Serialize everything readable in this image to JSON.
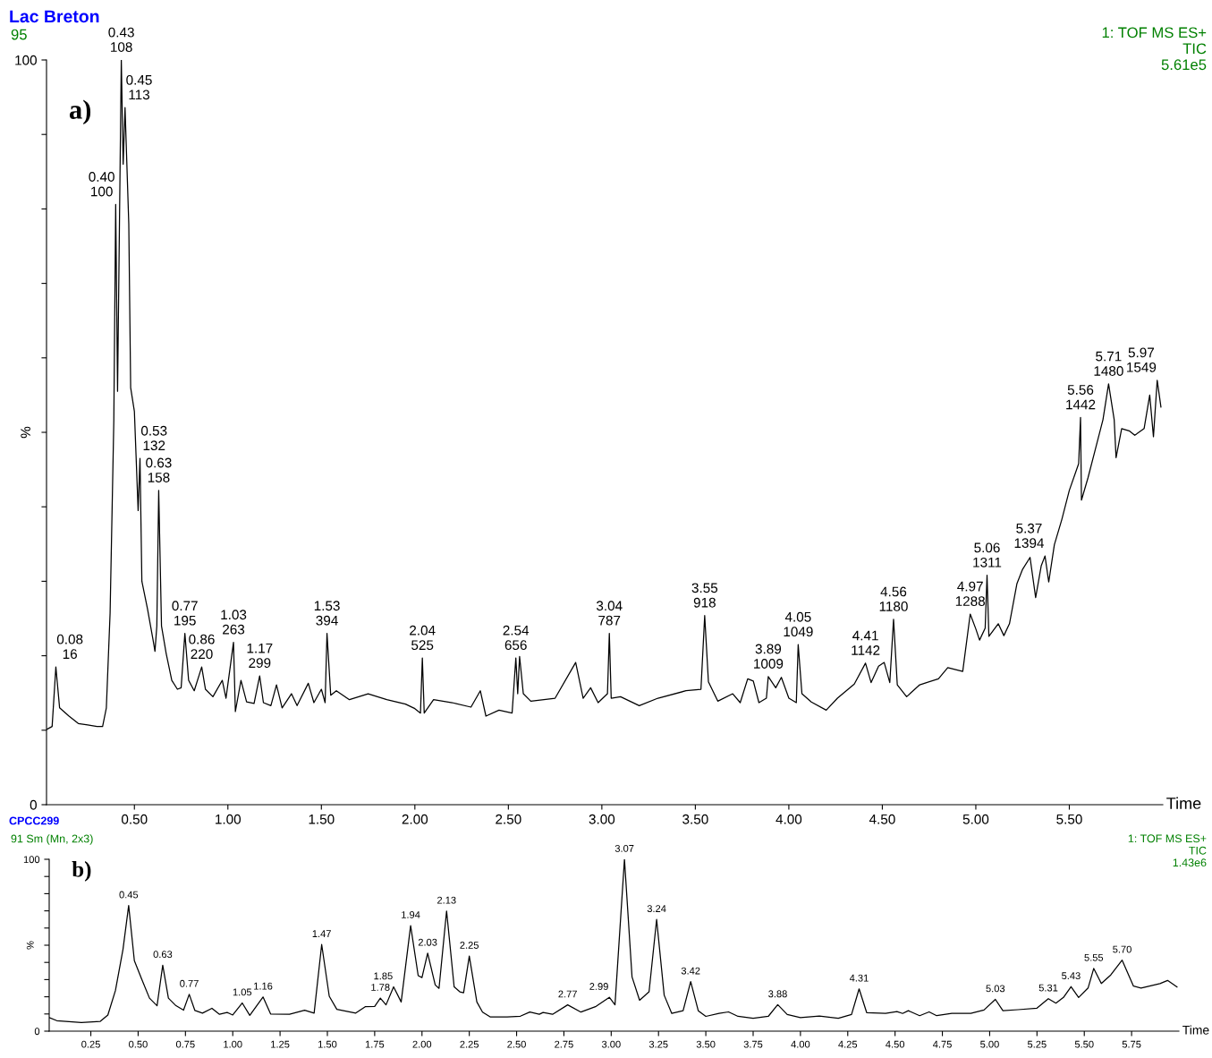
{
  "chart_data": [
    {
      "type": "line",
      "title": "Lac Breton",
      "subtitle": "95",
      "xlabel": "Time",
      "ylabel": "%",
      "x": [
        0.03,
        0.06,
        0.08,
        0.1,
        0.15,
        0.2,
        0.25,
        0.3,
        0.33,
        0.35,
        0.37,
        0.39,
        0.4,
        0.41,
        0.43,
        0.44,
        0.45,
        0.47,
        0.48,
        0.5,
        0.52,
        0.53,
        0.54,
        0.57,
        0.6,
        0.61,
        0.62,
        0.63,
        0.645,
        0.67,
        0.7,
        0.73,
        0.75,
        0.77,
        0.79,
        0.82,
        0.86,
        0.88,
        0.92,
        0.97,
        0.99,
        1.03,
        1.04,
        1.07,
        1.1,
        1.14,
        1.17,
        1.19,
        1.23,
        1.26,
        1.29,
        1.34,
        1.37,
        1.43,
        1.46,
        1.5,
        1.52,
        1.53,
        1.55,
        1.58,
        1.65,
        1.75,
        1.85,
        1.95,
        2.0,
        2.03,
        2.04,
        2.05,
        2.1,
        2.2,
        2.3,
        2.35,
        2.38,
        2.45,
        2.52,
        2.54,
        2.55,
        2.56,
        2.58,
        2.62,
        2.75,
        2.86,
        2.9,
        2.94,
        2.98,
        3.03,
        3.04,
        3.05,
        3.1,
        3.2,
        3.3,
        3.45,
        3.53,
        3.55,
        3.57,
        3.62,
        3.7,
        3.74,
        3.78,
        3.81,
        3.84,
        3.88,
        3.89,
        3.93,
        3.96,
        4.0,
        4.04,
        4.05,
        4.07,
        4.12,
        4.2,
        4.26,
        4.35,
        4.41,
        4.44,
        4.48,
        4.51,
        4.54,
        4.56,
        4.58,
        4.63,
        4.7,
        4.8,
        4.85,
        4.93,
        4.97,
        5.0,
        5.02,
        5.05,
        5.06,
        5.07,
        5.12,
        5.15,
        5.18,
        5.22,
        5.25,
        5.29,
        5.32,
        5.35,
        5.37,
        5.39,
        5.42,
        5.46,
        5.5,
        5.55,
        5.56,
        5.565,
        5.6,
        5.64,
        5.68,
        5.71,
        5.74,
        5.75,
        5.78,
        5.82,
        5.85,
        5.9,
        5.93,
        5.95,
        5.97,
        5.99
      ],
      "series": [
        {
          "color": "#000000",
          "values": [
            10.1,
            10.5,
            18.5,
            13,
            11.9,
            10.9,
            10.7,
            10.5,
            10.5,
            13,
            25.7,
            51.6,
            80.6,
            55.5,
            100,
            86,
            93.6,
            78,
            56,
            52.8,
            39.5,
            46.5,
            30,
            26.3,
            22.1,
            20.6,
            24,
            42.2,
            24,
            20.3,
            16.7,
            15.5,
            15.7,
            23,
            16.7,
            15.3,
            18.5,
            15.5,
            14.5,
            16.7,
            14.3,
            21.8,
            12.5,
            16.7,
            13.8,
            13.6,
            17.3,
            13.7,
            13.3,
            16.1,
            13,
            14.9,
            13.3,
            16.3,
            13.7,
            15.5,
            13.7,
            23,
            14.7,
            15.3,
            14.1,
            14.9,
            14.1,
            13.5,
            12.9,
            12.3,
            19.7,
            12.3,
            14.1,
            13.7,
            13.1,
            15.3,
            11.9,
            12.7,
            12.3,
            19.7,
            14.9,
            19.9,
            14.9,
            13.9,
            14.3,
            19.1,
            14.3,
            15.7,
            13.7,
            14.9,
            23,
            14.3,
            14.5,
            13.3,
            14.3,
            15.3,
            15.5,
            25.4,
            16.5,
            13.9,
            14.9,
            13.7,
            16.9,
            16.6,
            13.7,
            14.3,
            17.2,
            15.7,
            17.1,
            14.3,
            13.7,
            21.5,
            14.9,
            13.8,
            12.7,
            14.3,
            16.2,
            19,
            16.4,
            18.6,
            19.1,
            16.4,
            24.9,
            16.1,
            14.5,
            16.1,
            16.9,
            18.4,
            17.9,
            25.6,
            23.6,
            22.1,
            23.7,
            30.8,
            22.6,
            24.3,
            22.7,
            24.3,
            29.7,
            31.6,
            33.2,
            27.8,
            32.1,
            33.4,
            29.9,
            34.9,
            38.3,
            42.2,
            45.8,
            52,
            40.9,
            43.9,
            47.8,
            51.7,
            56.5,
            51.7,
            46.6,
            50.5,
            50.2,
            49.6,
            50.5,
            55,
            49.4,
            57,
            53.4
          ]
        }
      ],
      "xlim": [
        0.03,
        6.0
      ],
      "xticks": [
        {
          "value": 0.5,
          "label": "0.50"
        },
        {
          "value": 1.0,
          "label": "1.00"
        },
        {
          "value": 1.5,
          "label": "1.50"
        },
        {
          "value": 2.0,
          "label": "2.00"
        },
        {
          "value": 2.5,
          "label": "2.50"
        },
        {
          "value": 3.0,
          "label": "3.00"
        },
        {
          "value": 3.5,
          "label": "3.50"
        },
        {
          "value": 4.0,
          "label": "4.00"
        },
        {
          "value": 4.5,
          "label": "4.50"
        },
        {
          "value": 5.0,
          "label": "5.00"
        },
        {
          "value": 5.5,
          "label": "5.50"
        }
      ],
      "ylim": [
        0,
        100
      ],
      "yticks": [
        0,
        {
          "value": 10,
          "label": null
        },
        {
          "value": 20,
          "label": null
        },
        {
          "value": 30,
          "label": null
        },
        {
          "value": 40,
          "label": null
        },
        {
          "value": 50,
          "label": null
        },
        {
          "value": 60,
          "label": null
        },
        {
          "value": 70,
          "label": null
        },
        {
          "value": 80,
          "label": null
        },
        {
          "value": 90,
          "label": null
        },
        100
      ],
      "grid": false,
      "legend": false,
      "marker": "none",
      "line_style": "solid",
      "annotations": [
        "a)",
        "1: TOF MS ES+\nTIC\n5.61e5",
        {
          "text": "0.08\n16",
          "x": 0.08,
          "y": 18.5
        },
        {
          "text": "0.40\n100",
          "x": 0.4,
          "y": 80.6
        },
        {
          "text": "0.43\n108",
          "x": 0.43,
          "y": 100
        },
        {
          "text": "0.45\n113",
          "x": 0.45,
          "y": 93.6
        },
        {
          "text": "0.53\n132",
          "x": 0.53,
          "y": 46.5
        },
        {
          "text": "0.63\n158",
          "x": 0.63,
          "y": 42.2
        },
        {
          "text": "0.77\n195",
          "x": 0.77,
          "y": 23
        },
        {
          "text": "0.86\n220",
          "x": 0.86,
          "y": 18.5
        },
        {
          "text": "1.03\n263",
          "x": 1.03,
          "y": 21.8
        },
        {
          "text": "1.17\n299",
          "x": 1.17,
          "y": 17.3
        },
        {
          "text": "1.53\n394",
          "x": 1.53,
          "y": 23
        },
        {
          "text": "2.04\n525",
          "x": 2.04,
          "y": 19.7
        },
        {
          "text": "2.54\n656",
          "x": 2.54,
          "y": 19.7
        },
        {
          "text": "3.04\n787",
          "x": 3.04,
          "y": 23
        },
        {
          "text": "3.55\n918",
          "x": 3.55,
          "y": 25.4
        },
        {
          "text": "3.89\n1009",
          "x": 3.89,
          "y": 17.2
        },
        {
          "text": "4.05\n1049",
          "x": 4.05,
          "y": 21.5
        },
        {
          "text": "4.41\n1142",
          "x": 4.41,
          "y": 19
        },
        {
          "text": "4.56\n1180",
          "x": 4.56,
          "y": 24.9
        },
        {
          "text": "4.97\n1288",
          "x": 4.97,
          "y": 25.6
        },
        {
          "text": "5.06\n1311",
          "x": 5.06,
          "y": 30.8
        },
        {
          "text": "5.37\n1394",
          "x": 5.37,
          "y": 33.4
        },
        {
          "text": "5.56\n1442",
          "x": 5.56,
          "y": 52
        },
        {
          "text": "5.71\n1480",
          "x": 5.71,
          "y": 56.5
        },
        {
          "text": "5.97\n1549",
          "x": 5.97,
          "y": 57
        }
      ]
    },
    {
      "type": "line",
      "title": "CPCC299",
      "subtitle": "91 Sm (Mn, 2x3)",
      "xlabel": "Time",
      "ylabel": "%",
      "x": [
        0.03,
        0.07,
        0.2,
        0.3,
        0.34,
        0.38,
        0.42,
        0.45,
        0.48,
        0.52,
        0.56,
        0.6,
        0.63,
        0.66,
        0.7,
        0.74,
        0.77,
        0.8,
        0.84,
        0.89,
        0.93,
        0.97,
        1.0,
        1.05,
        1.09,
        1.16,
        1.2,
        1.3,
        1.38,
        1.43,
        1.47,
        1.51,
        1.55,
        1.65,
        1.7,
        1.75,
        1.78,
        1.81,
        1.85,
        1.89,
        1.94,
        1.98,
        2.0,
        2.03,
        2.07,
        2.09,
        2.13,
        2.17,
        2.2,
        2.22,
        2.25,
        2.29,
        2.32,
        2.36,
        2.45,
        2.52,
        2.57,
        2.62,
        2.64,
        2.69,
        2.77,
        2.84,
        2.92,
        2.99,
        3.02,
        3.07,
        3.11,
        3.15,
        3.2,
        3.24,
        3.28,
        3.32,
        3.38,
        3.42,
        3.46,
        3.5,
        3.57,
        3.62,
        3.67,
        3.75,
        3.83,
        3.88,
        3.93,
        4.0,
        4.1,
        4.2,
        4.27,
        4.31,
        4.35,
        4.45,
        4.51,
        4.54,
        4.57,
        4.63,
        4.68,
        4.72,
        4.8,
        4.9,
        4.97,
        5.03,
        5.07,
        5.15,
        5.25,
        5.31,
        5.35,
        5.39,
        5.43,
        5.47,
        5.52,
        5.55,
        5.59,
        5.64,
        5.7,
        5.76,
        5.8,
        5.9,
        5.94,
        5.99
      ],
      "series": [
        {
          "color": "#000000",
          "values": [
            7.9,
            6.1,
            5,
            5.7,
            9.4,
            23.6,
            47.6,
            73.1,
            41,
            30,
            19.2,
            14.8,
            38.4,
            19.2,
            14.8,
            12.2,
            21.4,
            12,
            10.5,
            13.3,
            9.8,
            10.9,
            9.4,
            16.4,
            9.2,
            19.9,
            10,
            9.8,
            12.2,
            10.5,
            50.4,
            20.3,
            12.7,
            10.5,
            14.2,
            14.4,
            19.2,
            15.3,
            25.8,
            17,
            61.4,
            32.3,
            31.2,
            45.4,
            26.9,
            24.9,
            69.9,
            25.8,
            22.9,
            22.3,
            43.7,
            17,
            11.1,
            8.3,
            8.3,
            8.7,
            11.1,
            9.8,
            10.9,
            9.8,
            15.3,
            11.1,
            14.4,
            19.7,
            15.3,
            100,
            31.6,
            18,
            22.9,
            65,
            20.9,
            10.3,
            11.9,
            28.8,
            11.9,
            8.6,
            10.3,
            11.2,
            8.6,
            7.5,
            8.6,
            15.4,
            9.7,
            7.9,
            8.8,
            7.5,
            9.7,
            24.6,
            10.8,
            10.3,
            11.4,
            10.3,
            11.9,
            9,
            11.2,
            9,
            10.3,
            10.3,
            12.3,
            18.5,
            11.9,
            12.5,
            13.4,
            18.9,
            16.3,
            19.6,
            25.9,
            19.6,
            25.1,
            36.5,
            27.7,
            32.7,
            41.3,
            26.2,
            25.1,
            27.7,
            29.5,
            25.7
          ]
        }
      ],
      "xlim": [
        0.03,
        6.0
      ],
      "xticks": [
        {
          "value": 0.25,
          "label": "0.25"
        },
        {
          "value": 0.5,
          "label": "0.50"
        },
        {
          "value": 0.75,
          "label": "0.75"
        },
        {
          "value": 1.0,
          "label": "1.00"
        },
        {
          "value": 1.25,
          "label": "1.25"
        },
        {
          "value": 1.5,
          "label": "1.50"
        },
        {
          "value": 1.75,
          "label": "1.75"
        },
        {
          "value": 2.0,
          "label": "2.00"
        },
        {
          "value": 2.25,
          "label": "2.25"
        },
        {
          "value": 2.5,
          "label": "2.50"
        },
        {
          "value": 2.75,
          "label": "2.75"
        },
        {
          "value": 3.0,
          "label": "3.00"
        },
        {
          "value": 3.25,
          "label": "3.25"
        },
        {
          "value": 3.5,
          "label": "3.50"
        },
        {
          "value": 3.75,
          "label": "3.75"
        },
        {
          "value": 4.0,
          "label": "4.00"
        },
        {
          "value": 4.25,
          "label": "4.25"
        },
        {
          "value": 4.5,
          "label": "4.50"
        },
        {
          "value": 4.75,
          "label": "4.75"
        },
        {
          "value": 5.0,
          "label": "5.00"
        },
        {
          "value": 5.25,
          "label": "5.25"
        },
        {
          "value": 5.5,
          "label": "5.50"
        },
        {
          "value": 5.75,
          "label": "5.75"
        }
      ],
      "ylim": [
        0,
        100
      ],
      "yticks": [
        0,
        {
          "value": 10,
          "label": null
        },
        {
          "value": 20,
          "label": null
        },
        {
          "value": 30,
          "label": null
        },
        {
          "value": 40,
          "label": null
        },
        {
          "value": 50,
          "label": null
        },
        {
          "value": 60,
          "label": null
        },
        {
          "value": 70,
          "label": null
        },
        {
          "value": 80,
          "label": null
        },
        {
          "value": 90,
          "label": null
        },
        100
      ],
      "grid": false,
      "legend": false,
      "marker": "none",
      "line_style": "solid",
      "annotations": [
        "b)",
        "1: TOF MS ES+\nTIC\n1.43e6",
        {
          "text": "0.45",
          "x": 0.45,
          "y": 73.1
        },
        {
          "text": "0.63",
          "x": 0.63,
          "y": 38.4
        },
        {
          "text": "0.77",
          "x": 0.77,
          "y": 21.4
        },
        {
          "text": "1.05",
          "x": 1.05,
          "y": 16.4
        },
        {
          "text": "1.16",
          "x": 1.16,
          "y": 19.9
        },
        {
          "text": "1.47",
          "x": 1.47,
          "y": 50.4
        },
        {
          "text": "1.78",
          "x": 1.78,
          "y": 19.2
        },
        {
          "text": "1.85",
          "x": 1.85,
          "y": 25.8
        },
        {
          "text": "1.94",
          "x": 1.94,
          "y": 61.4
        },
        {
          "text": "2.03",
          "x": 2.03,
          "y": 45.4
        },
        {
          "text": "2.13",
          "x": 2.13,
          "y": 69.9
        },
        {
          "text": "2.25",
          "x": 2.25,
          "y": 43.7
        },
        {
          "text": "2.77",
          "x": 2.77,
          "y": 15.3
        },
        {
          "text": "2.99",
          "x": 2.99,
          "y": 19.7
        },
        {
          "text": "3.07",
          "x": 3.07,
          "y": 100
        },
        {
          "text": "3.24",
          "x": 3.24,
          "y": 65
        },
        {
          "text": "3.42",
          "x": 3.42,
          "y": 28.8
        },
        {
          "text": "3.88",
          "x": 3.88,
          "y": 15.4
        },
        {
          "text": "4.31",
          "x": 4.31,
          "y": 24.6
        },
        {
          "text": "5.03",
          "x": 5.03,
          "y": 18.5
        },
        {
          "text": "5.31",
          "x": 5.31,
          "y": 18.9
        },
        {
          "text": "5.43",
          "x": 5.43,
          "y": 25.9
        },
        {
          "text": "5.55",
          "x": 5.55,
          "y": 36.5
        },
        {
          "text": "5.70",
          "x": 5.7,
          "y": 41.3
        }
      ]
    }
  ]
}
